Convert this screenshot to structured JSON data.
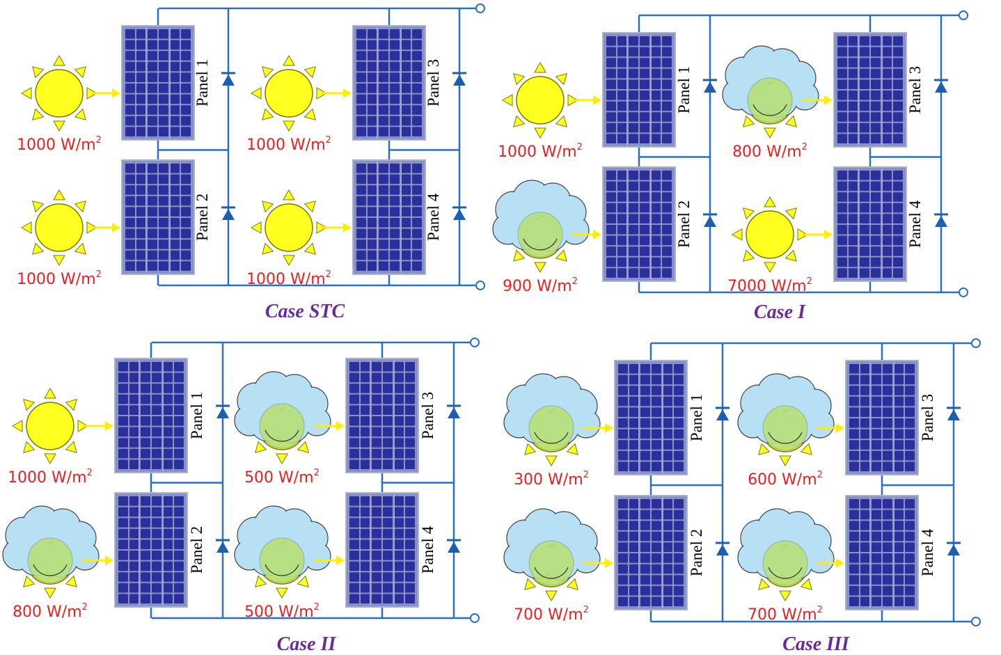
{
  "colors": {
    "wire": "#2a6fc0",
    "terminal_fill": "#ffffff",
    "diode": "#1c5fb0",
    "panel_cell": "#2b2f9a",
    "panel_frame": "#aab2cc",
    "panel_gap": "#8890c8",
    "sun_fill": "#ffff20",
    "sun_stroke": "#7a7a00",
    "ray_fill": "#ffff20",
    "cloud_fill": "#b8e0f4",
    "cloud_stroke": "#444444",
    "arrow": "#ffee00",
    "irradiance_text": "#ee1c1c",
    "panel_text": "#000000",
    "case_text": "#6a2a9c"
  },
  "diagrams": [
    {
      "name": "case-stc",
      "case_label": "Case STC",
      "panels": [
        {
          "label": "Panel 1",
          "irradiance": "1000 W/m",
          "unit_sup": "2",
          "shaded": false
        },
        {
          "label": "Panel 2",
          "irradiance": "1000 W/m",
          "unit_sup": "2",
          "shaded": false
        },
        {
          "label": "Panel 3",
          "irradiance": "1000 W/m",
          "unit_sup": "2",
          "shaded": false
        },
        {
          "label": "Panel 4",
          "irradiance": "1000 W/m",
          "unit_sup": "2",
          "shaded": false
        }
      ]
    },
    {
      "name": "case-i",
      "case_label": "Case I",
      "panels": [
        {
          "label": "Panel 1",
          "irradiance": "1000 W/m",
          "unit_sup": "2",
          "shaded": false
        },
        {
          "label": "Panel 2",
          "irradiance": "900 W/m",
          "unit_sup": "2",
          "shaded": true
        },
        {
          "label": "Panel 3",
          "irradiance": "800 W/m",
          "unit_sup": "2",
          "shaded": true
        },
        {
          "label": "Panel 4",
          "irradiance": "7000 W/m",
          "unit_sup": "2",
          "shaded": false
        }
      ]
    },
    {
      "name": "case-ii",
      "case_label": "Case II",
      "panels": [
        {
          "label": "Panel 1",
          "irradiance": "1000 W/m",
          "unit_sup": "2",
          "shaded": false
        },
        {
          "label": "Panel 2",
          "irradiance": "800 W/m",
          "unit_sup": "2",
          "shaded": true
        },
        {
          "label": "Panel 3",
          "irradiance": "500 W/m",
          "unit_sup": "2",
          "shaded": true
        },
        {
          "label": "Panel 4",
          "irradiance": "500 W/m",
          "unit_sup": "2",
          "shaded": true
        }
      ]
    },
    {
      "name": "case-iii",
      "case_label": "Case III",
      "panels": [
        {
          "label": "Panel 1",
          "irradiance": "300 W/m",
          "unit_sup": "2",
          "shaded": true
        },
        {
          "label": "Panel 2",
          "irradiance": "700 W/m",
          "unit_sup": "2",
          "shaded": true
        },
        {
          "label": "Panel 3",
          "irradiance": "600 W/m",
          "unit_sup": "2",
          "shaded": true
        },
        {
          "label": "Panel 4",
          "irradiance": "700 W/m",
          "unit_sup": "2",
          "shaded": true
        }
      ]
    }
  ]
}
